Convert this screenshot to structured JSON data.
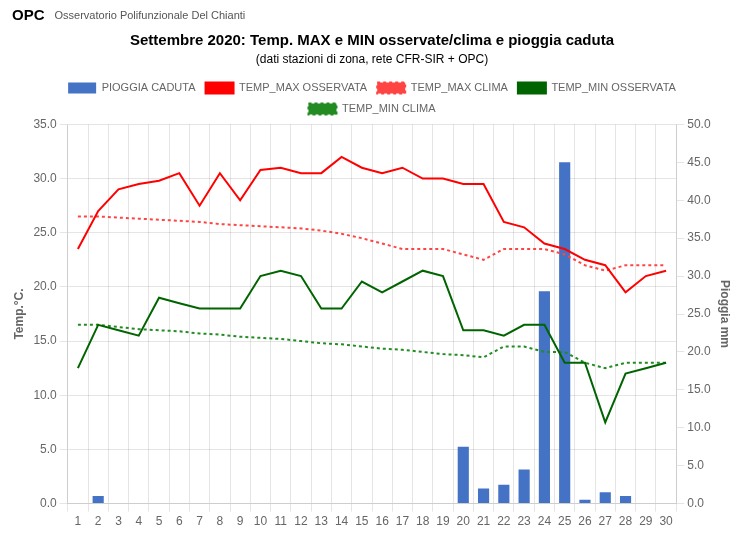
{
  "chart_data": {
    "type": "line",
    "title": "Settembre 2020: Temp. MAX e MIN osservate/clima e pioggia caduta",
    "subtitle": "(dati stazioni di zona, rete CFR-SIR + OPC)",
    "annotations": [
      "OPC",
      "Osservatorio Polifunzionale Del Chianti"
    ],
    "ylabel": "Temp.°C.",
    "y2label": "Pioggia mm",
    "x": [
      1,
      2,
      3,
      4,
      5,
      6,
      7,
      8,
      9,
      10,
      11,
      12,
      13,
      14,
      15,
      16,
      17,
      18,
      19,
      20,
      21,
      22,
      23,
      24,
      25,
      26,
      27,
      28,
      29,
      30
    ],
    "xlim": [
      0.5,
      30.5
    ],
    "xticks": [
      1,
      2,
      3,
      4,
      5,
      6,
      7,
      8,
      9,
      10,
      11,
      12,
      13,
      14,
      15,
      16,
      17,
      18,
      19,
      20,
      21,
      22,
      23,
      24,
      25,
      26,
      27,
      28,
      29,
      30
    ],
    "ylim": [
      0.0,
      35.0
    ],
    "yticks": [
      {
        "value": 0,
        "label": "0.0"
      },
      {
        "value": 5,
        "label": "5.0"
      },
      {
        "value": 10,
        "label": "10.0"
      },
      {
        "value": 15,
        "label": "15.0"
      },
      {
        "value": 20,
        "label": "20.0"
      },
      {
        "value": 25,
        "label": "25.0"
      },
      {
        "value": 30,
        "label": "30.0"
      },
      {
        "value": 35,
        "label": "35.0"
      }
    ],
    "y2lim": [
      0.0,
      50.0
    ],
    "y2ticks": [
      {
        "value": 0,
        "label": "0.0"
      },
      {
        "value": 5,
        "label": "5.0"
      },
      {
        "value": 10,
        "label": "10.0"
      },
      {
        "value": 15,
        "label": "15.0"
      },
      {
        "value": 20,
        "label": "20.0"
      },
      {
        "value": 25,
        "label": "25.0"
      },
      {
        "value": 30,
        "label": "30.0"
      },
      {
        "value": 35,
        "label": "35.0"
      },
      {
        "value": 40,
        "label": "40.0"
      },
      {
        "value": 45,
        "label": "45.0"
      },
      {
        "value": 50,
        "label": "50.0"
      }
    ],
    "grid": true,
    "legend": "top",
    "series": [
      {
        "name": "PIOGGIA CADUTA",
        "type": "bar",
        "axis": "y2",
        "color": "#4472C4",
        "values": [
          0.0,
          1.0,
          0.0,
          0.0,
          0.0,
          0.0,
          0.0,
          0.0,
          0.0,
          0.0,
          0.0,
          0.0,
          0.0,
          0.0,
          0.0,
          0.0,
          0.0,
          0.0,
          0.0,
          7.5,
          2.0,
          2.5,
          4.5,
          28.0,
          45.0,
          0.5,
          1.5,
          1.0,
          0.0,
          0.0
        ]
      },
      {
        "name": "TEMP_MAX OSSERVATA",
        "type": "line",
        "color": "#FF0000",
        "line_style": "solid",
        "values": [
          23.5,
          27.0,
          29.0,
          29.5,
          29.8,
          30.5,
          27.5,
          30.5,
          28.0,
          30.8,
          31.0,
          30.5,
          30.5,
          32.0,
          31.0,
          30.5,
          31.0,
          30.0,
          30.0,
          29.5,
          29.5,
          26.0,
          25.5,
          24.0,
          23.5,
          22.5,
          22.0,
          19.5,
          21.0,
          21.5
        ]
      },
      {
        "name": "TEMP_MAX CLIMA",
        "type": "line",
        "color": "#FF4444",
        "line_style": "dotted",
        "values": [
          26.5,
          26.5,
          26.4,
          26.3,
          26.2,
          26.1,
          26.0,
          25.8,
          25.7,
          25.6,
          25.5,
          25.4,
          25.2,
          24.9,
          24.5,
          24.0,
          23.5,
          23.5,
          23.5,
          23.0,
          22.5,
          23.5,
          23.5,
          23.5,
          23.0,
          22.0,
          21.5,
          22.0,
          22.0,
          22.0
        ]
      },
      {
        "name": "TEMP_MIN OSSERVATA",
        "type": "line",
        "color": "#006400",
        "line_style": "solid",
        "values": [
          12.5,
          16.5,
          16.0,
          15.5,
          19.0,
          18.5,
          18.0,
          18.0,
          18.0,
          21.0,
          21.5,
          21.0,
          18.0,
          18.0,
          20.5,
          19.5,
          20.5,
          21.5,
          21.0,
          16.0,
          16.0,
          15.5,
          16.5,
          16.5,
          13.0,
          13.0,
          7.5,
          12.0,
          12.5,
          13.0
        ]
      },
      {
        "name": "TEMP_MIN CLIMA",
        "type": "line",
        "color": "#228B22",
        "line_style": "dotted",
        "values": [
          16.5,
          16.5,
          16.3,
          16.1,
          16.0,
          15.9,
          15.7,
          15.6,
          15.4,
          15.3,
          15.2,
          15.0,
          14.8,
          14.7,
          14.5,
          14.3,
          14.2,
          14.0,
          13.8,
          13.7,
          13.5,
          14.5,
          14.5,
          14.0,
          14.0,
          13.0,
          12.5,
          13.0,
          13.0,
          13.0
        ]
      }
    ]
  }
}
